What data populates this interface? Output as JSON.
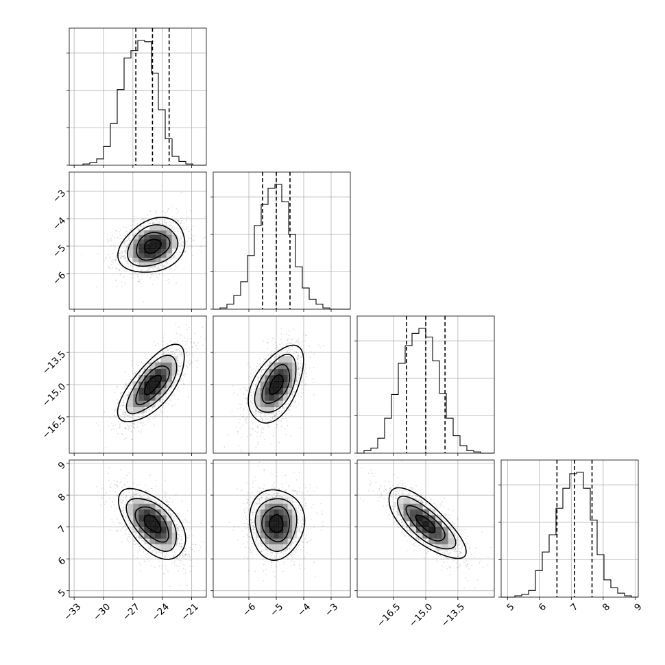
{
  "chart_data": {
    "type": "corner",
    "parameters": [
      {
        "range": [
          -33.5,
          -19.5
        ],
        "ticks": [
          -33,
          -30,
          -27,
          -24,
          -21
        ],
        "tick_labels": [
          "−33",
          "−30",
          "−27",
          "−24",
          "−21"
        ],
        "quantiles": [
          -26.7,
          -25.0,
          -23.3
        ],
        "hist": {
          "edges": [
            -33.5,
            -32.8,
            -32.1,
            -31.4,
            -30.7,
            -30.0,
            -29.3,
            -28.6,
            -27.9,
            -27.2,
            -26.5,
            -25.8,
            -25.1,
            -24.4,
            -23.7,
            -23.0,
            -22.3,
            -21.6,
            -20.9,
            -20.2,
            -19.5
          ],
          "counts": [
            0.0,
            0.0,
            0.01,
            0.02,
            0.05,
            0.15,
            0.33,
            0.6,
            0.85,
            0.91,
            0.99,
            0.98,
            0.73,
            0.44,
            0.21,
            0.07,
            0.03,
            0.01,
            0.0,
            0.0
          ]
        }
      },
      {
        "range": [
          -7.3,
          -2.3
        ],
        "ticks": [
          -6,
          -5,
          -4,
          -3
        ],
        "tick_labels": [
          "−6",
          "−5",
          "−4",
          "−3"
        ],
        "quantiles": [
          -5.5,
          -5.0,
          -4.5
        ],
        "hist": {
          "edges": [
            -7.3,
            -7.05,
            -6.8,
            -6.55,
            -6.3,
            -6.05,
            -5.8,
            -5.55,
            -5.3,
            -5.05,
            -4.8,
            -4.55,
            -4.3,
            -4.05,
            -3.8,
            -3.55,
            -3.3,
            -3.05,
            -2.8,
            -2.55,
            -2.3
          ],
          "counts": [
            0.0,
            0.01,
            0.04,
            0.11,
            0.22,
            0.43,
            0.67,
            0.84,
            0.97,
            1.0,
            0.86,
            0.6,
            0.34,
            0.17,
            0.08,
            0.04,
            0.01,
            0.0,
            0.0,
            0.0
          ]
        }
      },
      {
        "range": [
          -18.2,
          -11.8
        ],
        "ticks": [
          -16.5,
          -15.0,
          -13.5
        ],
        "tick_labels": [
          "−16.5",
          "−15.0",
          "−13.5"
        ],
        "quantiles": [
          -15.9,
          -15.0,
          -14.1
        ],
        "hist": {
          "edges": [
            -18.2,
            -17.88,
            -17.56,
            -17.24,
            -16.92,
            -16.6,
            -16.28,
            -15.96,
            -15.64,
            -15.32,
            -15.0,
            -14.68,
            -14.36,
            -14.04,
            -13.72,
            -13.4,
            -13.08,
            -12.76,
            -12.44,
            -12.12,
            -11.8
          ],
          "counts": [
            0.0,
            0.02,
            0.04,
            0.12,
            0.28,
            0.47,
            0.72,
            0.86,
            0.96,
            1.0,
            0.93,
            0.74,
            0.48,
            0.28,
            0.14,
            0.06,
            0.02,
            0.01,
            0.0,
            0.0
          ]
        }
      },
      {
        "range": [
          4.8,
          9.1
        ],
        "ticks": [
          5,
          6,
          7,
          8,
          9
        ],
        "tick_labels": [
          "5",
          "6",
          "7",
          "8",
          "9"
        ],
        "quantiles": [
          6.55,
          7.1,
          7.65
        ],
        "hist": {
          "edges": [
            4.8,
            5.015,
            5.23,
            5.445,
            5.66,
            5.875,
            6.09,
            6.305,
            6.52,
            6.735,
            6.95,
            7.165,
            7.38,
            7.595,
            7.81,
            8.025,
            8.24,
            8.455,
            8.67,
            8.885,
            9.1
          ],
          "counts": [
            0.0,
            0.0,
            0.01,
            0.02,
            0.05,
            0.2,
            0.34,
            0.47,
            0.67,
            0.82,
            0.93,
            0.94,
            0.82,
            0.58,
            0.32,
            0.13,
            0.07,
            0.03,
            0.01,
            0.0
          ]
        }
      }
    ],
    "correlations": [
      [
        0,
        1,
        0.25
      ],
      [
        0,
        2,
        0.7
      ],
      [
        1,
        2,
        0.5
      ],
      [
        0,
        3,
        -0.55
      ],
      [
        1,
        3,
        0.0
      ],
      [
        2,
        3,
        -0.75
      ]
    ],
    "contour_levels": [
      0.5,
      1.0,
      1.5,
      2.0
    ]
  }
}
